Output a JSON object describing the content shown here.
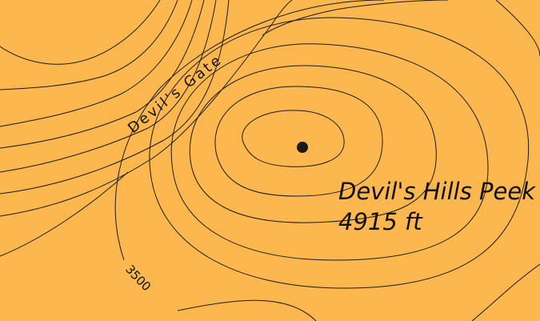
{
  "colors": {
    "land": "#FDB74F",
    "contour": "#1a1a1a",
    "text": "#111111",
    "peak_marker": "#1a1a1a"
  },
  "labels": {
    "pass_name": "Devil's Gate",
    "contour_elevation": "3500",
    "peak_name": "Devil's Hills Peek",
    "peak_elevation": "4915 ft"
  }
}
